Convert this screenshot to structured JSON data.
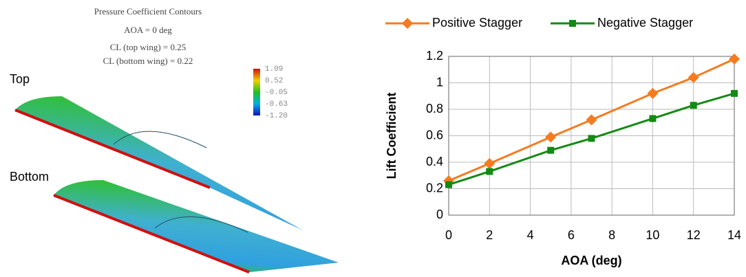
{
  "contour_panel": {
    "title": "Pressure Coefficient Contours",
    "subtitle": "AOA = 0 deg",
    "notes": [
      "CL (top wing) = 0.25",
      "CL (bottom wing) = 0.22"
    ],
    "labels": [
      "Top",
      "Bottom"
    ],
    "clim": [
      -1.2,
      1.09
    ],
    "cticks": [
      1.09,
      0.52,
      -0.05,
      -0.63,
      {
        "value": -1.2,
        "label": "-1.20"
      }
    ]
  },
  "chart_data": {
    "type": "line",
    "x": [
      0,
      2,
      5,
      7,
      10,
      12,
      14
    ],
    "x_label": "AOA (deg)",
    "y_label": "Lift Coefficient",
    "series": [
      {
        "name": "Positive Stagger",
        "color": "#f47b20",
        "marker": "diamond",
        "values": [
          0.26,
          0.39,
          0.59,
          0.72,
          0.92,
          1.04,
          1.18
        ]
      },
      {
        "name": "Negative Stagger",
        "color": "#138a13",
        "marker": "square",
        "values": [
          0.23,
          0.33,
          0.49,
          0.58,
          0.73,
          0.83,
          0.92
        ]
      }
    ],
    "xlim": [
      0,
      14
    ],
    "xticks": [
      0,
      2,
      4,
      6,
      8,
      10,
      12,
      14
    ],
    "ylim": [
      0,
      1.2
    ],
    "yticks": [
      0,
      0.2,
      0.4,
      0.6,
      0.8,
      1,
      1.2
    ],
    "grid": true
  }
}
